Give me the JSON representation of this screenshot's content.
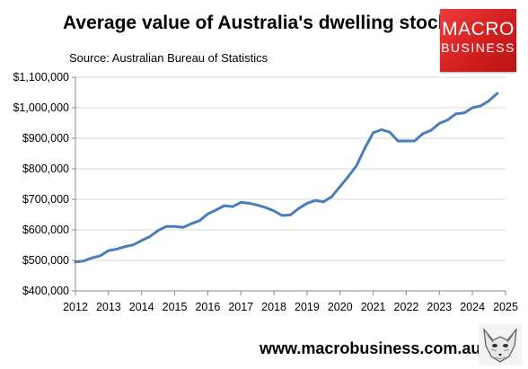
{
  "header": {
    "title": "Average value of Australia's dwelling stock",
    "source": "Source: Australian Bureau of Statistics"
  },
  "logo": {
    "line1": "MACRO",
    "line2": "BUSINESS"
  },
  "footer": {
    "website": "www.macrobusiness.com.au"
  },
  "colors": {
    "line": "#4a7ebb",
    "logo": "#e02a2a",
    "grid": "#d9d9d9"
  },
  "chart_data": {
    "type": "line",
    "title": "Average value of Australia's dwelling stock",
    "xlabel": "",
    "ylabel": "",
    "xlim": [
      2012,
      2025
    ],
    "ylim": [
      400000,
      1100000
    ],
    "x_ticks": [
      2012,
      2013,
      2014,
      2015,
      2016,
      2017,
      2018,
      2019,
      2020,
      2021,
      2022,
      2023,
      2024,
      2025
    ],
    "y_ticks": [
      400000,
      500000,
      600000,
      700000,
      800000,
      900000,
      1000000,
      1100000
    ],
    "y_tick_labels": [
      "$400,000",
      "$500,000",
      "$600,000",
      "$700,000",
      "$800,000",
      "$900,000",
      "$1,000,000",
      "$1,100,000"
    ],
    "grid": "horizontal",
    "series": [
      {
        "x": [
          2012.0,
          2012.25,
          2012.5,
          2012.75,
          2013.0,
          2013.25,
          2013.5,
          2013.75,
          2014.0,
          2014.25,
          2014.5,
          2014.75,
          2015.0,
          2015.25,
          2015.5,
          2015.75,
          2016.0,
          2016.25,
          2016.5,
          2016.75,
          2017.0,
          2017.25,
          2017.5,
          2017.75,
          2018.0,
          2018.25,
          2018.5,
          2018.75,
          2019.0,
          2019.25,
          2019.5,
          2019.75,
          2020.0,
          2020.25,
          2020.5,
          2020.75,
          2021.0,
          2021.25,
          2021.5,
          2021.75,
          2022.0,
          2022.25,
          2022.5,
          2022.75,
          2023.0,
          2023.25,
          2023.5,
          2023.75,
          2024.0,
          2024.25,
          2024.5,
          2024.75
        ],
        "y": [
          495000,
          498000,
          508000,
          515000,
          532000,
          537000,
          545000,
          551000,
          565000,
          578000,
          598000,
          611000,
          611000,
          608000,
          620000,
          630000,
          652000,
          665000,
          679000,
          676000,
          690000,
          687000,
          681000,
          673000,
          662000,
          647000,
          649000,
          670000,
          687000,
          696000,
          692000,
          709000,
          742000,
          775000,
          811000,
          868000,
          918000,
          928000,
          920000,
          891000,
          891000,
          891000,
          915000,
          926000,
          949000,
          960000,
          980000,
          983000,
          1000000,
          1006000,
          1023000,
          1047000
        ]
      }
    ]
  }
}
